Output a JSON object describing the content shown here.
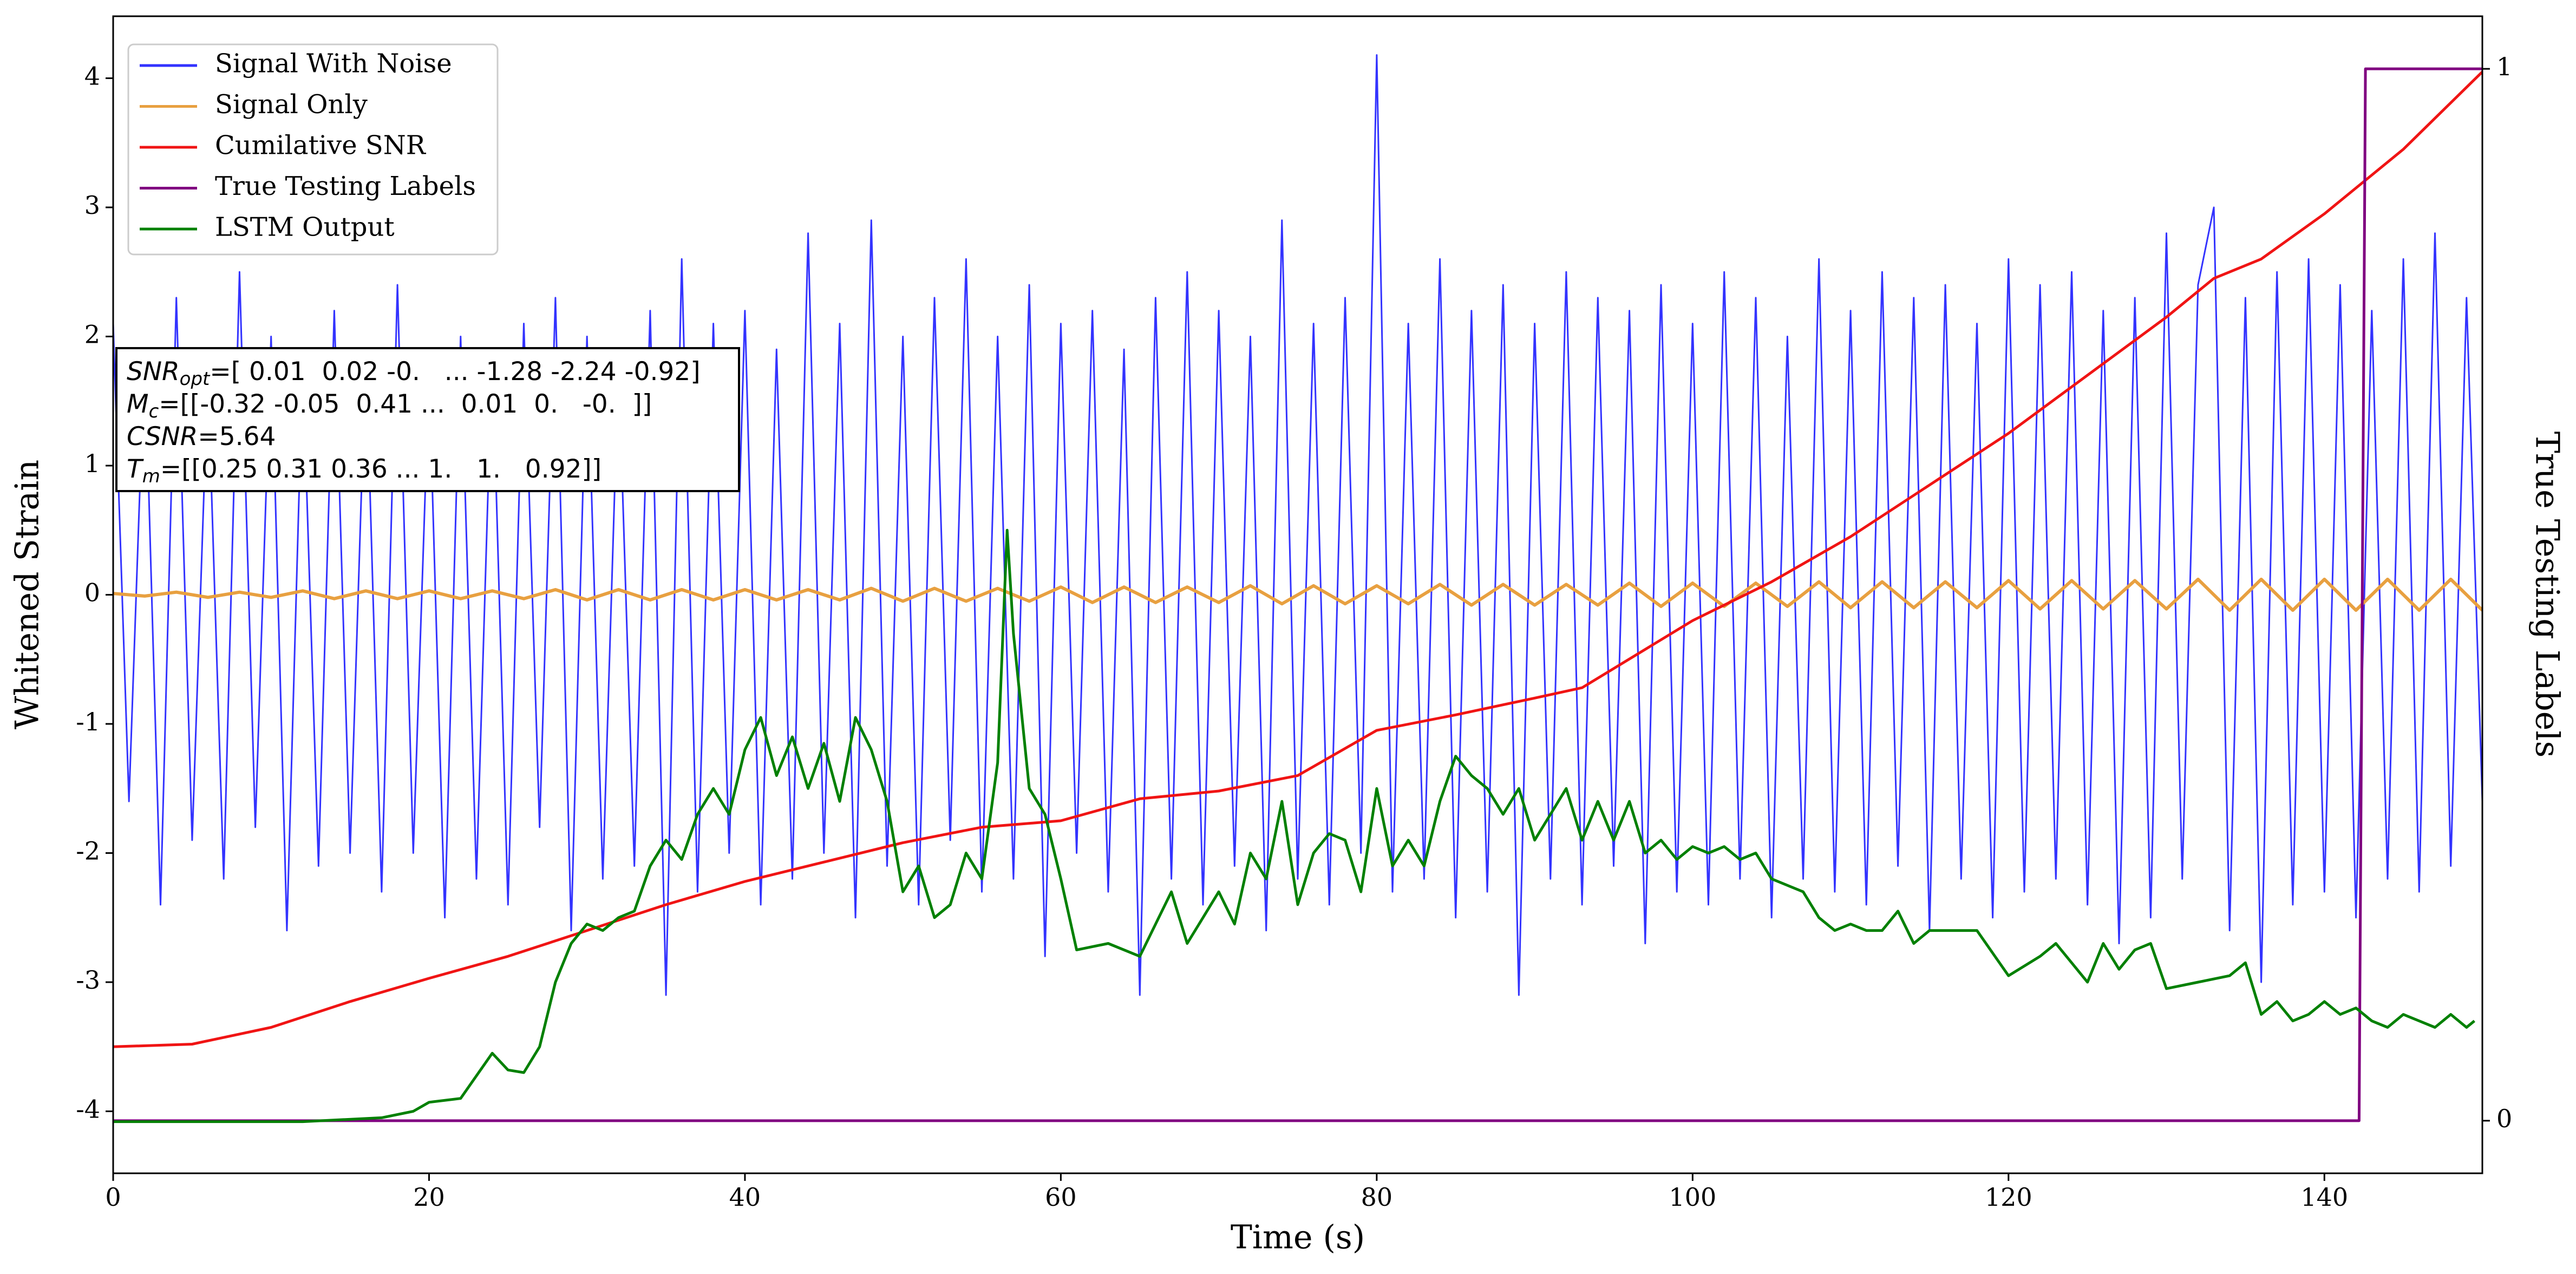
{
  "chart_data": {
    "type": "line",
    "xlabel": "Time (s)",
    "ylabel": "Whitened Strain",
    "y2label": "True Testing Labels",
    "xlim": [
      0,
      150
    ],
    "ylim": [
      -4.48,
      4.48
    ],
    "y2lim": [
      -0.05,
      1.05
    ],
    "xticks": [
      0,
      20,
      40,
      60,
      80,
      100,
      120,
      140
    ],
    "yticks": [
      -4,
      -3,
      -2,
      -1,
      0,
      1,
      2,
      3,
      4
    ],
    "y2ticks": [
      0,
      1
    ],
    "grid": false,
    "legend": "upper left",
    "annotation": [
      {
        "symbol": "SNR",
        "subscript": "opt",
        "text": "=[ 0.01  0.02 -0.   ... -1.28 -2.24 -0.92]"
      },
      {
        "symbol": "M",
        "subscript": "c",
        "text": "=[[-0.32 -0.05  0.41 ...  0.01  0.   -0.  ]]"
      },
      {
        "symbol": "CSNR",
        "text": "=5.64"
      },
      {
        "symbol": "T",
        "subscript": "m",
        "text": "=[[0.25 0.31 0.36 ... 1.   1.   0.92]]"
      }
    ],
    "series": [
      {
        "name": "Signal With Noise",
        "color": "#3333ff",
        "width": 3,
        "x": [
          0,
          1,
          2,
          3,
          4,
          5,
          6,
          7,
          8,
          9,
          10,
          11,
          12,
          13,
          14,
          15,
          16,
          17,
          18,
          19,
          20,
          21,
          22,
          23,
          24,
          25,
          26,
          27,
          28,
          29,
          30,
          31,
          32,
          33,
          34,
          35,
          36,
          37,
          38,
          39,
          40,
          41,
          42,
          43,
          44,
          45,
          46,
          47,
          48,
          49,
          50,
          51,
          52,
          53,
          54,
          55,
          56,
          57,
          58,
          59,
          60,
          61,
          62,
          63,
          64,
          65,
          66,
          67,
          68,
          69,
          70,
          71,
          72,
          73,
          74,
          75,
          76,
          77,
          78,
          79,
          80,
          81,
          82,
          83,
          84,
          85,
          86,
          87,
          88,
          89,
          90,
          91,
          92,
          93,
          94,
          95,
          96,
          97,
          98,
          99,
          100,
          101,
          102,
          103,
          104,
          105,
          106,
          107,
          108,
          109,
          110,
          111,
          112,
          113,
          114,
          115,
          116,
          117,
          118,
          119,
          120,
          121,
          122,
          123,
          124,
          125,
          126,
          127,
          128,
          129,
          130,
          131,
          132,
          133,
          134,
          135,
          136,
          137,
          138,
          139,
          140,
          141,
          142,
          143,
          144,
          145,
          146,
          147,
          148,
          149,
          150
        ],
        "values": [
          2.1,
          -1.6,
          1.9,
          -2.4,
          2.3,
          -1.9,
          1.7,
          -2.2,
          2.5,
          -1.8,
          2.0,
          -2.6,
          1.8,
          -2.1,
          2.2,
          -2.0,
          1.9,
          -2.3,
          2.4,
          -2.0,
          1.7,
          -2.5,
          2.0,
          -2.2,
          1.9,
          -2.4,
          2.1,
          -1.8,
          2.3,
          -2.6,
          2.0,
          -2.2,
          1.8,
          -2.1,
          2.2,
          -3.1,
          2.6,
          -2.3,
          2.1,
          -2.0,
          2.2,
          -2.4,
          1.9,
          -2.2,
          2.8,
          -2.0,
          2.1,
          -2.5,
          2.9,
          -2.1,
          2.0,
          -2.4,
          2.3,
          -1.9,
          2.6,
          -2.3,
          2.0,
          -2.2,
          2.4,
          -2.8,
          2.1,
          -2.0,
          2.2,
          -2.3,
          1.9,
          -3.1,
          2.3,
          -2.2,
          2.5,
          -2.4,
          2.2,
          -2.1,
          2.0,
          -2.6,
          2.9,
          -2.2,
          2.1,
          -2.4,
          2.3,
          -2.0,
          4.18,
          -2.3,
          2.1,
          -2.2,
          2.6,
          -2.5,
          2.2,
          -2.3,
          2.4,
          -3.1,
          2.1,
          -2.2,
          2.5,
          -2.4,
          2.3,
          -2.1,
          2.2,
          -2.7,
          2.4,
          -2.3,
          2.1,
          -2.4,
          2.5,
          -2.2,
          2.3,
          -2.5,
          2.0,
          -2.2,
          2.6,
          -2.3,
          2.2,
          -2.4,
          2.5,
          -2.1,
          2.3,
          -2.6,
          2.4,
          -2.2,
          2.1,
          -2.5,
          2.6,
          -2.3,
          2.4,
          -2.2,
          2.5,
          -2.4,
          2.2,
          -2.7,
          2.3,
          -2.5,
          2.8,
          -2.2,
          2.4,
          3.0,
          -2.6,
          2.3,
          -3.0,
          2.5,
          -2.4,
          2.6,
          -2.3,
          2.4,
          -2.5,
          2.2,
          -2.2,
          2.6,
          -2.3,
          2.8,
          -2.1,
          2.3,
          -1.6
        ]
      },
      {
        "name": "Signal Only",
        "color": "#e8a040",
        "width": 6,
        "x": [
          0,
          2,
          4,
          6,
          8,
          10,
          12,
          14,
          16,
          18,
          20,
          22,
          24,
          26,
          28,
          30,
          32,
          34,
          36,
          38,
          40,
          42,
          44,
          46,
          48,
          50,
          52,
          54,
          56,
          58,
          60,
          62,
          64,
          66,
          68,
          70,
          72,
          74,
          76,
          78,
          80,
          82,
          84,
          86,
          88,
          90,
          92,
          94,
          96,
          98,
          100,
          102,
          104,
          106,
          108,
          110,
          112,
          114,
          116,
          118,
          120,
          122,
          124,
          126,
          128,
          130,
          132,
          134,
          136,
          138,
          140,
          142,
          144,
          146,
          148,
          150
        ],
        "values": [
          0.01,
          -0.01,
          0.02,
          -0.02,
          0.02,
          -0.02,
          0.03,
          -0.03,
          0.03,
          -0.03,
          0.03,
          -0.03,
          0.03,
          -0.03,
          0.04,
          -0.04,
          0.04,
          -0.04,
          0.04,
          -0.04,
          0.04,
          -0.04,
          0.04,
          -0.04,
          0.05,
          -0.05,
          0.05,
          -0.05,
          0.05,
          -0.05,
          0.06,
          -0.06,
          0.06,
          -0.06,
          0.06,
          -0.06,
          0.07,
          -0.07,
          0.07,
          -0.07,
          0.07,
          -0.07,
          0.08,
          -0.08,
          0.08,
          -0.08,
          0.08,
          -0.08,
          0.09,
          -0.09,
          0.09,
          -0.09,
          0.09,
          -0.09,
          0.1,
          -0.1,
          0.1,
          -0.1,
          0.1,
          -0.1,
          0.11,
          -0.11,
          0.11,
          -0.11,
          0.11,
          -0.11,
          0.12,
          -0.12,
          0.12,
          -0.12,
          0.12,
          -0.12,
          0.12,
          -0.12,
          0.12,
          -0.12
        ]
      },
      {
        "name": "Cumilative SNR",
        "color": "#f01414",
        "width": 5,
        "x": [
          0,
          5,
          10,
          15,
          20,
          25,
          30,
          35,
          40,
          45,
          50,
          55,
          60,
          65,
          70,
          75,
          80,
          85,
          90,
          93,
          100,
          105,
          110,
          115,
          120,
          125,
          130,
          133,
          136,
          140,
          145,
          150
        ],
        "values": [
          -3.5,
          -3.48,
          -3.35,
          -3.15,
          -2.97,
          -2.8,
          -2.6,
          -2.4,
          -2.22,
          -2.07,
          -1.92,
          -1.8,
          -1.75,
          -1.58,
          -1.52,
          -1.4,
          -1.05,
          -0.93,
          -0.8,
          -0.72,
          -0.2,
          0.1,
          0.45,
          0.85,
          1.25,
          1.7,
          2.15,
          2.45,
          2.6,
          2.95,
          3.45,
          4.05
        ]
      },
      {
        "name": "True Testing Labels",
        "color": "#800080",
        "width": 5,
        "axis": "y2",
        "x": [
          0,
          142.2,
          142.6,
          150
        ],
        "values": [
          0,
          0,
          1,
          1
        ]
      },
      {
        "name": "LSTM Output",
        "color": "#008000",
        "width": 5,
        "x": [
          0,
          12,
          17,
          19,
          20,
          22,
          24,
          25,
          26,
          27,
          28,
          29,
          30,
          31,
          32,
          33,
          34,
          35,
          36,
          37,
          38,
          39,
          40,
          41,
          42,
          43,
          44,
          45,
          46,
          47,
          48,
          49,
          50,
          51,
          52,
          53,
          54,
          55,
          56,
          56.6,
          57,
          58,
          59,
          60,
          61,
          63,
          65,
          67,
          68,
          69,
          70,
          71,
          72,
          73,
          74,
          75,
          76,
          77,
          78,
          79,
          80,
          81,
          82,
          83,
          84,
          85,
          86,
          87,
          88,
          89,
          90,
          91,
          92,
          93,
          94,
          95,
          96,
          97,
          98,
          99,
          100,
          101,
          102,
          103,
          104,
          105,
          107,
          108,
          109,
          110,
          111,
          112,
          113,
          114,
          115,
          116,
          118,
          120,
          122,
          123,
          125,
          126,
          127,
          128,
          129,
          130,
          132,
          134,
          135,
          136,
          137,
          138,
          139,
          140,
          141,
          142,
          143,
          144,
          145,
          146,
          147,
          148,
          149,
          149.5
        ],
        "values": [
          -4.08,
          -4.08,
          -4.05,
          -4.0,
          -3.93,
          -3.9,
          -3.55,
          -3.68,
          -3.7,
          -3.5,
          -3.0,
          -2.7,
          -2.55,
          -2.6,
          -2.5,
          -2.45,
          -2.1,
          -1.9,
          -2.05,
          -1.7,
          -1.5,
          -1.7,
          -1.2,
          -0.95,
          -1.4,
          -1.1,
          -1.5,
          -1.15,
          -1.6,
          -0.95,
          -1.2,
          -1.6,
          -2.3,
          -2.1,
          -2.5,
          -2.4,
          -2.0,
          -2.2,
          -1.3,
          0.5,
          -0.3,
          -1.5,
          -1.7,
          -2.2,
          -2.75,
          -2.7,
          -2.8,
          -2.3,
          -2.7,
          -2.5,
          -2.3,
          -2.55,
          -2.0,
          -2.2,
          -1.6,
          -2.4,
          -2.0,
          -1.85,
          -1.9,
          -2.3,
          -1.5,
          -2.1,
          -1.9,
          -2.1,
          -1.6,
          -1.25,
          -1.4,
          -1.5,
          -1.7,
          -1.5,
          -1.9,
          -1.7,
          -1.5,
          -1.9,
          -1.6,
          -1.9,
          -1.6,
          -2.0,
          -1.9,
          -2.05,
          -1.95,
          -2.0,
          -1.95,
          -2.05,
          -2.0,
          -2.2,
          -2.3,
          -2.5,
          -2.6,
          -2.55,
          -2.6,
          -2.6,
          -2.45,
          -2.7,
          -2.6,
          -2.6,
          -2.6,
          -2.95,
          -2.8,
          -2.7,
          -3.0,
          -2.7,
          -2.9,
          -2.75,
          -2.7,
          -3.05,
          -3.0,
          -2.95,
          -2.85,
          -3.25,
          -3.15,
          -3.3,
          -3.25,
          -3.15,
          -3.25,
          -3.2,
          -3.3,
          -3.35,
          -3.25,
          -3.3,
          -3.35,
          -3.25,
          -3.35,
          -3.3
        ]
      }
    ]
  }
}
